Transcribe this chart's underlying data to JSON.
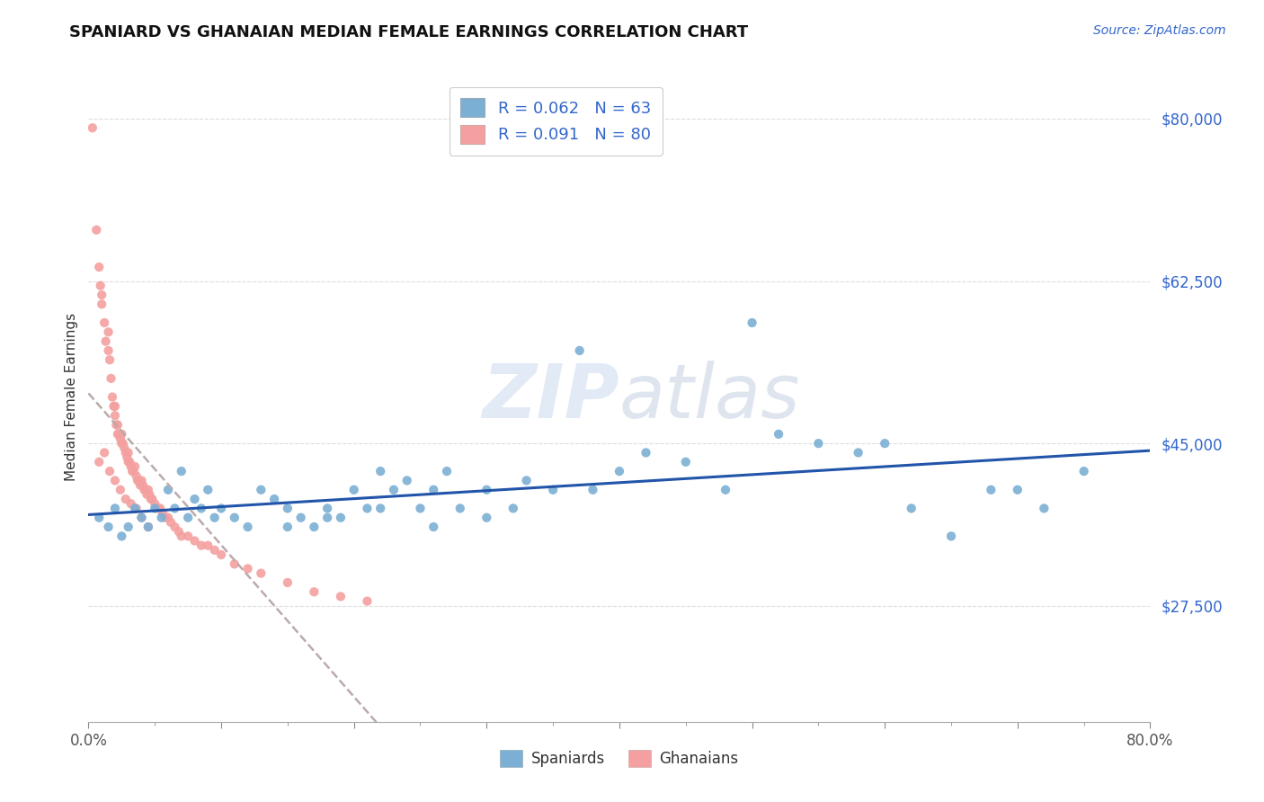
{
  "title": "SPANIARD VS GHANAIAN MEDIAN FEMALE EARNINGS CORRELATION CHART",
  "source_text": "Source: ZipAtlas.com",
  "ylabel": "Median Female Earnings",
  "xlim": [
    0.0,
    0.8
  ],
  "ylim": [
    15000,
    85000
  ],
  "yticks": [
    27500,
    45000,
    62500,
    80000
  ],
  "ytick_labels": [
    "$27,500",
    "$45,000",
    "$62,500",
    "$80,000"
  ],
  "xticks": [
    0.0,
    0.1,
    0.2,
    0.3,
    0.4,
    0.5,
    0.6,
    0.7,
    0.8
  ],
  "xtick_labels": [
    "0.0%",
    "",
    "",
    "",
    "",
    "",
    "",
    "",
    "80.0%"
  ],
  "legend_line1": "R = 0.062   N = 63",
  "legend_line2": "R = 0.091   N = 80",
  "legend_label1": "Spaniards",
  "legend_label2": "Ghanaians",
  "color_spaniards": "#7BAFD4",
  "color_ghanaians": "#F4A0A0",
  "color_line_spaniards": "#2255AA",
  "color_trendline_ghanaians": "#C08080",
  "color_legend_blue": "#3366CC",
  "watermark_color": "#D0DCF0",
  "background_color": "#FFFFFF",
  "spaniards_x": [
    0.008,
    0.015,
    0.02,
    0.025,
    0.03,
    0.035,
    0.04,
    0.045,
    0.05,
    0.055,
    0.06,
    0.065,
    0.07,
    0.075,
    0.08,
    0.085,
    0.09,
    0.095,
    0.1,
    0.11,
    0.12,
    0.13,
    0.14,
    0.15,
    0.16,
    0.17,
    0.18,
    0.19,
    0.2,
    0.21,
    0.22,
    0.23,
    0.24,
    0.25,
    0.26,
    0.27,
    0.28,
    0.3,
    0.32,
    0.33,
    0.35,
    0.37,
    0.4,
    0.42,
    0.45,
    0.48,
    0.5,
    0.52,
    0.55,
    0.58,
    0.6,
    0.62,
    0.65,
    0.68,
    0.7,
    0.72,
    0.75,
    0.15,
    0.18,
    0.22,
    0.26,
    0.3,
    0.38
  ],
  "spaniards_y": [
    37000,
    36000,
    38000,
    35000,
    36000,
    38000,
    37000,
    36000,
    38000,
    37000,
    40000,
    38000,
    42000,
    37000,
    39000,
    38000,
    40000,
    37000,
    38000,
    37000,
    36000,
    40000,
    39000,
    38000,
    37000,
    36000,
    38000,
    37000,
    40000,
    38000,
    42000,
    40000,
    41000,
    38000,
    40000,
    42000,
    38000,
    40000,
    38000,
    41000,
    40000,
    55000,
    42000,
    44000,
    43000,
    40000,
    58000,
    46000,
    45000,
    44000,
    45000,
    38000,
    35000,
    40000,
    40000,
    38000,
    42000,
    36000,
    37000,
    38000,
    36000,
    37000,
    40000
  ],
  "ghanaians_x": [
    0.003,
    0.006,
    0.008,
    0.009,
    0.01,
    0.01,
    0.012,
    0.013,
    0.015,
    0.015,
    0.016,
    0.017,
    0.018,
    0.019,
    0.02,
    0.02,
    0.021,
    0.022,
    0.022,
    0.023,
    0.024,
    0.025,
    0.025,
    0.026,
    0.027,
    0.028,
    0.029,
    0.03,
    0.03,
    0.031,
    0.032,
    0.033,
    0.034,
    0.035,
    0.036,
    0.037,
    0.038,
    0.039,
    0.04,
    0.041,
    0.042,
    0.043,
    0.044,
    0.045,
    0.046,
    0.047,
    0.048,
    0.05,
    0.052,
    0.054,
    0.056,
    0.058,
    0.06,
    0.062,
    0.065,
    0.068,
    0.07,
    0.075,
    0.08,
    0.085,
    0.09,
    0.095,
    0.1,
    0.11,
    0.12,
    0.13,
    0.15,
    0.17,
    0.19,
    0.21,
    0.008,
    0.012,
    0.016,
    0.02,
    0.024,
    0.028,
    0.032,
    0.036,
    0.04,
    0.045
  ],
  "ghanaians_y": [
    79000,
    68000,
    64000,
    62000,
    60000,
    61000,
    58000,
    56000,
    55000,
    57000,
    54000,
    52000,
    50000,
    49000,
    48000,
    49000,
    47000,
    46000,
    47000,
    46000,
    45500,
    45000,
    46000,
    45000,
    44500,
    44000,
    43500,
    44000,
    43000,
    43000,
    42500,
    42000,
    42000,
    42500,
    41500,
    41000,
    41000,
    40500,
    41000,
    40500,
    40000,
    40000,
    39500,
    40000,
    39500,
    39000,
    39000,
    38500,
    38000,
    38000,
    37500,
    37000,
    37000,
    36500,
    36000,
    35500,
    35000,
    35000,
    34500,
    34000,
    34000,
    33500,
    33000,
    32000,
    31500,
    31000,
    30000,
    29000,
    28500,
    28000,
    43000,
    44000,
    42000,
    41000,
    40000,
    39000,
    38500,
    38000,
    37000,
    36000
  ]
}
